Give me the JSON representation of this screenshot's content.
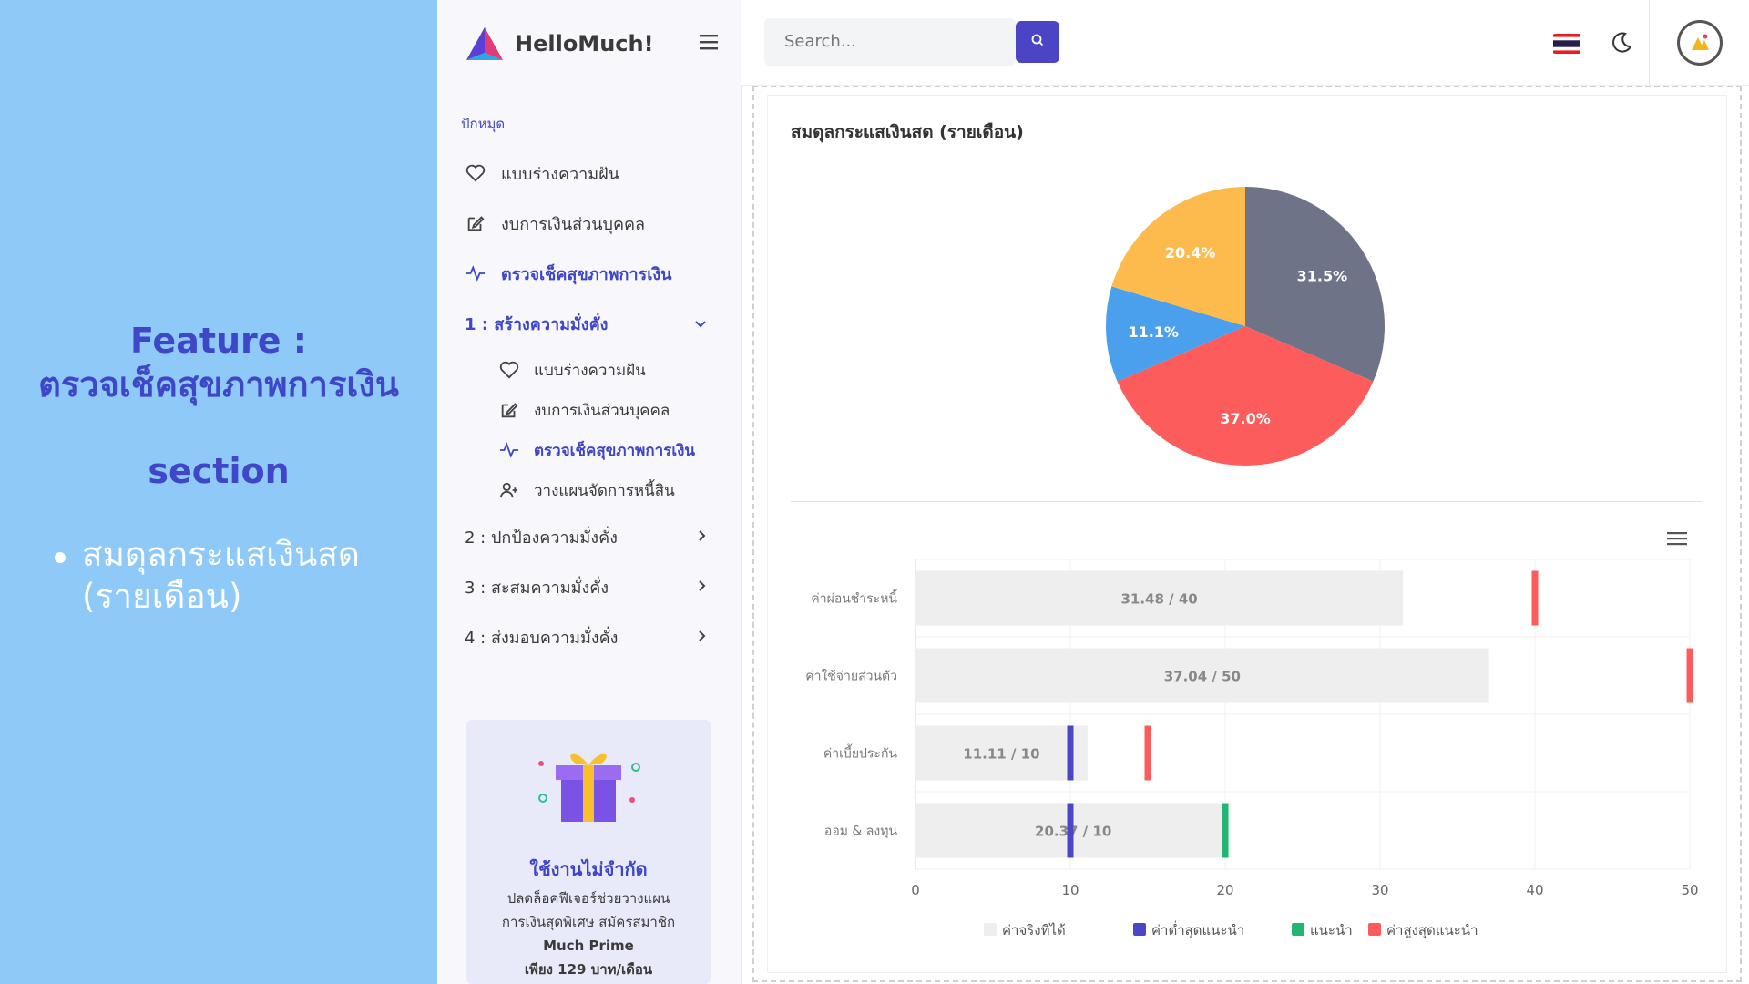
{
  "slide": {
    "feature_title_line1": "Feature :",
    "feature_title_line2": "ตรวจเช็คสุขภาพการเงิน",
    "section_label": "section",
    "bullet": "สมดุลกระแสเงินสด (รายเดือน)"
  },
  "app": {
    "brand": "HelloMuch!",
    "search_placeholder": "Search...",
    "language_flag": "th-flag",
    "theme_toggle": "moon-icon"
  },
  "sidebar": {
    "caption": "ปักหมุด",
    "pinned": [
      {
        "label": "แบบร่างความฝัน",
        "icon": "heart-icon"
      },
      {
        "label": "งบการเงินส่วนบุคคล",
        "icon": "edit-icon"
      },
      {
        "label": "ตรวจเช็คสุขภาพการเงิน",
        "icon": "activity-icon",
        "active": true
      }
    ],
    "groups": [
      {
        "label": "1 : สร้างความมั่งคั่ง",
        "expanded": true
      },
      {
        "label": "2 : ปกป้องความมั่งคั่ง"
      },
      {
        "label": "3 : สะสมความมั่งคั่ง"
      },
      {
        "label": "4 : ส่งมอบความมั่งคั่ง"
      }
    ],
    "group1_items": [
      {
        "label": "แบบร่างความฝัน",
        "icon": "heart-icon"
      },
      {
        "label": "งบการเงินส่วนบุคคล",
        "icon": "edit-icon"
      },
      {
        "label": "ตรวจเช็คสุขภาพการเงิน",
        "icon": "activity-icon",
        "active": true
      },
      {
        "label": "วางแผนจัดการหนี้สิน",
        "icon": "user-plus-icon"
      }
    ],
    "promo": {
      "title": "ใช้งานไม่จำกัด",
      "line1": "ปลดล็อคฟีเจอร์ช่วยวางแผน",
      "line2": "การเงินสุดพิเศษ สมัครสมาชิก",
      "line3": "Much Prime",
      "line4": "เพียง 129 บาท/เดือน"
    }
  },
  "card": {
    "title": "สมดุลกระแสเงินสด (รายเดือน)"
  },
  "colors": {
    "accent": "#4b45c6",
    "pie": [
      "#6e7387",
      "#fd5c5c",
      "#4aa0ec",
      "#fdbb4d"
    ]
  },
  "chart_data": [
    {
      "type": "pie",
      "slices": [
        {
          "value": 31.5,
          "label": "31.5%",
          "color": "#6e7387"
        },
        {
          "value": 37.0,
          "label": "37.0%",
          "color": "#fd5c5c"
        },
        {
          "value": 11.1,
          "label": "11.1%",
          "color": "#4aa0ec"
        },
        {
          "value": 20.4,
          "label": "20.4%",
          "color": "#fdbb4d"
        }
      ]
    },
    {
      "type": "bar",
      "orientation": "horizontal",
      "categories": [
        "ค่าผ่อนชำระหนี้",
        "ค่าใช้จ่ายส่วนตัว",
        "ค่าเบี้ยประกัน",
        "ออม & ลงทุน"
      ],
      "xlim": [
        0,
        50
      ],
      "xticks": [
        "0",
        "10",
        "20",
        "30",
        "40",
        "50"
      ],
      "series": [
        {
          "name": "ค่าจริงที่ได้",
          "color": "#eeeeee",
          "values": [
            31.48,
            37.04,
            11.11,
            20.37
          ]
        },
        {
          "name": "ค่าต่ำสุดแนะนำ",
          "color": "#4a47c4",
          "values": [
            null,
            null,
            10,
            10
          ]
        },
        {
          "name": "แนะนำ",
          "color": "#22b573",
          "values": [
            null,
            null,
            null,
            20
          ]
        },
        {
          "name": "ค่าสูงสุดแนะนำ",
          "color": "#fd5c5c",
          "values": [
            40,
            50,
            15,
            null
          ]
        }
      ],
      "data_labels": [
        "31.48 / 40",
        "37.04 / 50",
        "11.11 / 10",
        "20.37 / 10"
      ],
      "legend_position": "bottom"
    }
  ]
}
